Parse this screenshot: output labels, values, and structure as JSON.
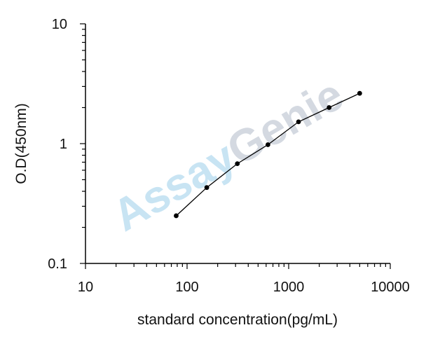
{
  "chart_data": {
    "type": "line",
    "x": [
      78.125,
      156.25,
      312.5,
      625,
      1250,
      2500,
      5000
    ],
    "y": [
      0.25,
      0.43,
      0.68,
      0.98,
      1.52,
      2.0,
      2.63
    ],
    "xlabel": "standard concentration(pg/mL)",
    "ylabel": "O.D(450nm)",
    "xscale": "log",
    "yscale": "log",
    "xlim": [
      10,
      10000
    ],
    "ylim": [
      0.1,
      10
    ],
    "xticks": [
      "10",
      "100",
      "1000",
      "10000"
    ],
    "yticks": [
      "0.1",
      "1",
      "10"
    ],
    "grid": false,
    "series_color": "#000000"
  },
  "watermark": {
    "text_part1": "Assay",
    "text_part2": "Genie",
    "color1": "#bfe0f2",
    "color2": "#cdd3dc"
  }
}
